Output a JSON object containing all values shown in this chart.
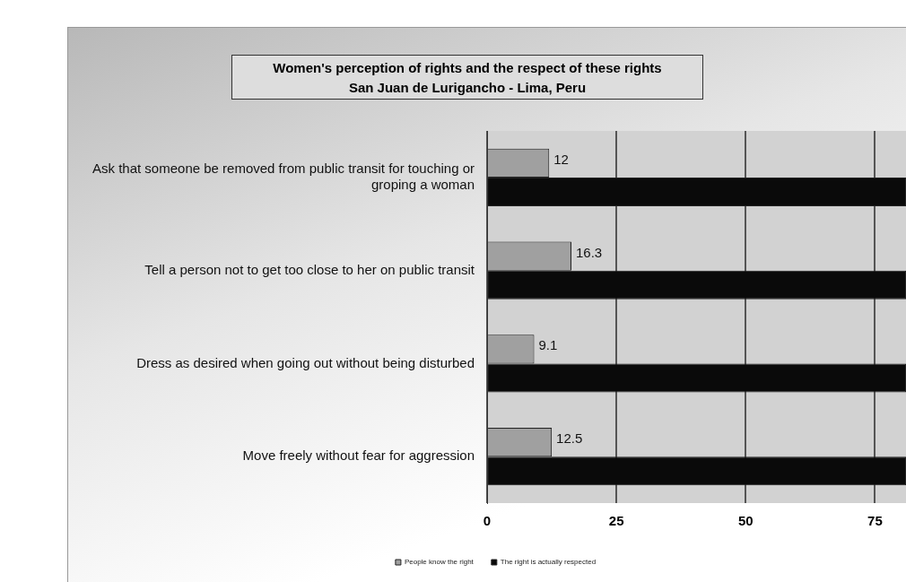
{
  "chart_data": {
    "type": "bar",
    "orientation": "horizontal",
    "title": "Women's perception of rights and the respect of these rights\nSan Juan de Lurigancho - Lima, Peru",
    "categories": [
      "Ask that someone be removed from public transit for touching or groping a woman",
      "Tell a person not to get too close to her on public transit",
      "Dress as desired when going out without being disturbed",
      "Move freely without fear for aggression"
    ],
    "series": [
      {
        "name": "People know the right",
        "color": "#a0a0a0",
        "values": [
          12,
          16.3,
          9.1,
          12.5
        ],
        "value_labels": [
          "12",
          "16.3",
          "9.1",
          "12.5"
        ]
      },
      {
        "name": "The right is actually respected",
        "color": "#0a0a0a",
        "values": [
          81,
          81,
          81,
          81
        ]
      }
    ],
    "xlim": [
      0,
      81
    ],
    "xticks": [
      0,
      25,
      50,
      75
    ],
    "grid": "x",
    "legend": "bottom"
  }
}
